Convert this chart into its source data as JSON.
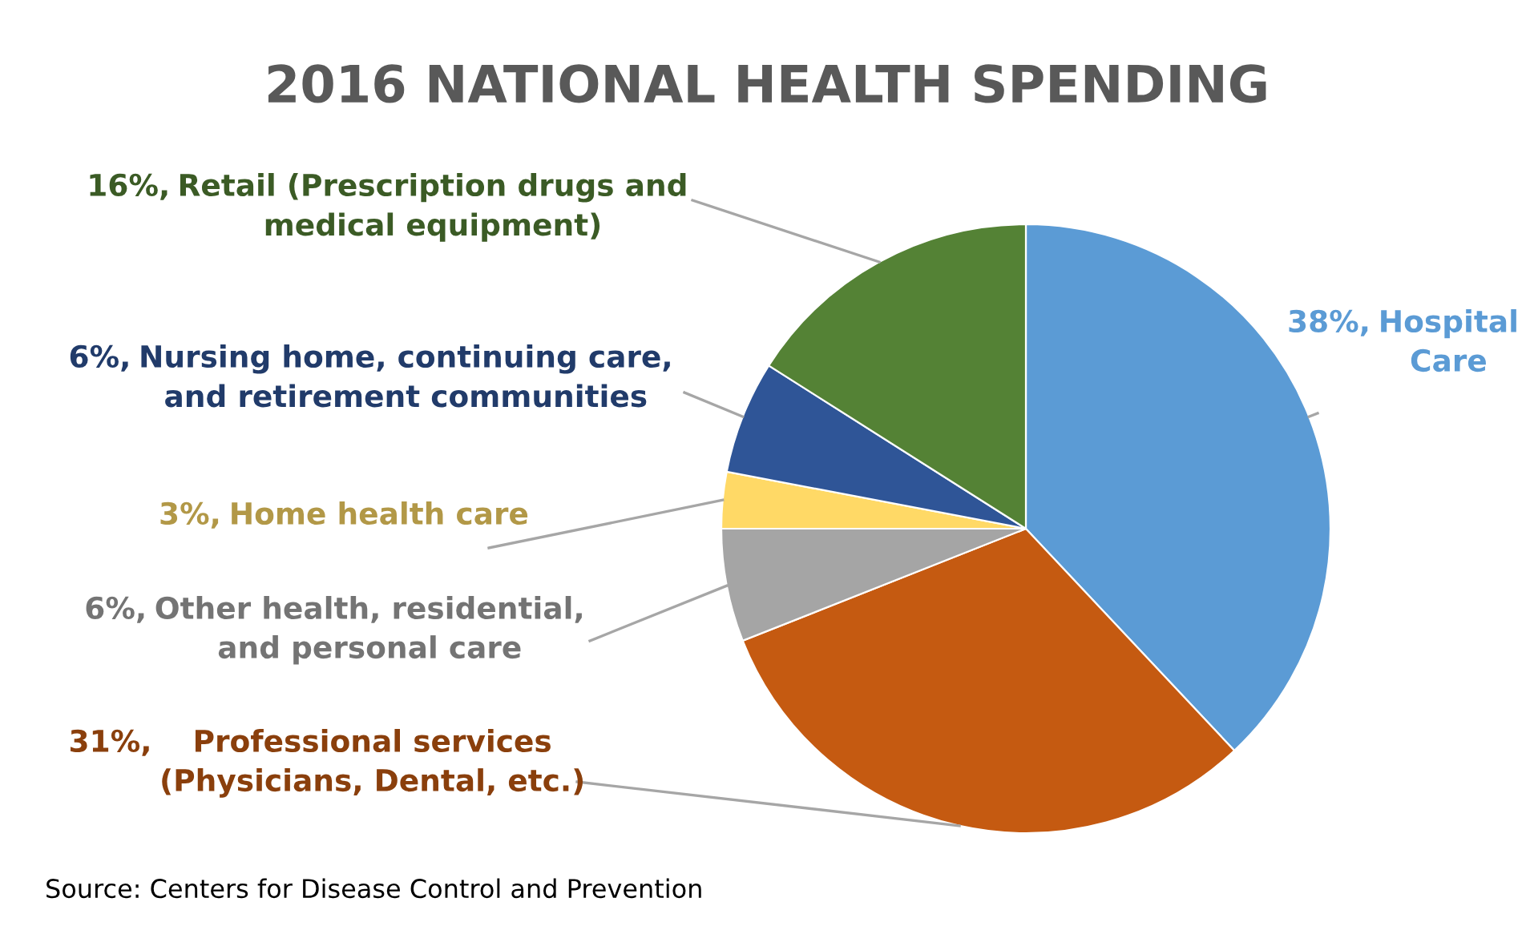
{
  "chart_data": {
    "type": "pie",
    "title": "2016 NATIONAL HEALTH SPENDING",
    "categories": [
      "Hospital\nCare",
      "Professional services\n(Physicians, Dental, etc.)",
      "Other health, residential,\nand personal care",
      "Home health care",
      "Nursing home, continuing care,\nand retirement communities",
      "Retail (Prescription drugs and\nmedical equipment)"
    ],
    "values": [
      38,
      31,
      6,
      3,
      6,
      16
    ],
    "value_labels": [
      "38%,",
      "31%,",
      "6%,",
      "3%,",
      "6%,",
      "16%,"
    ],
    "colors": [
      "#5b9bd5",
      "#c55a11",
      "#a5a5a5",
      "#ffd966",
      "#2f5597",
      "#548235"
    ],
    "annotations": [
      "Source: Centers for Disease Control and Prevention"
    ]
  }
}
